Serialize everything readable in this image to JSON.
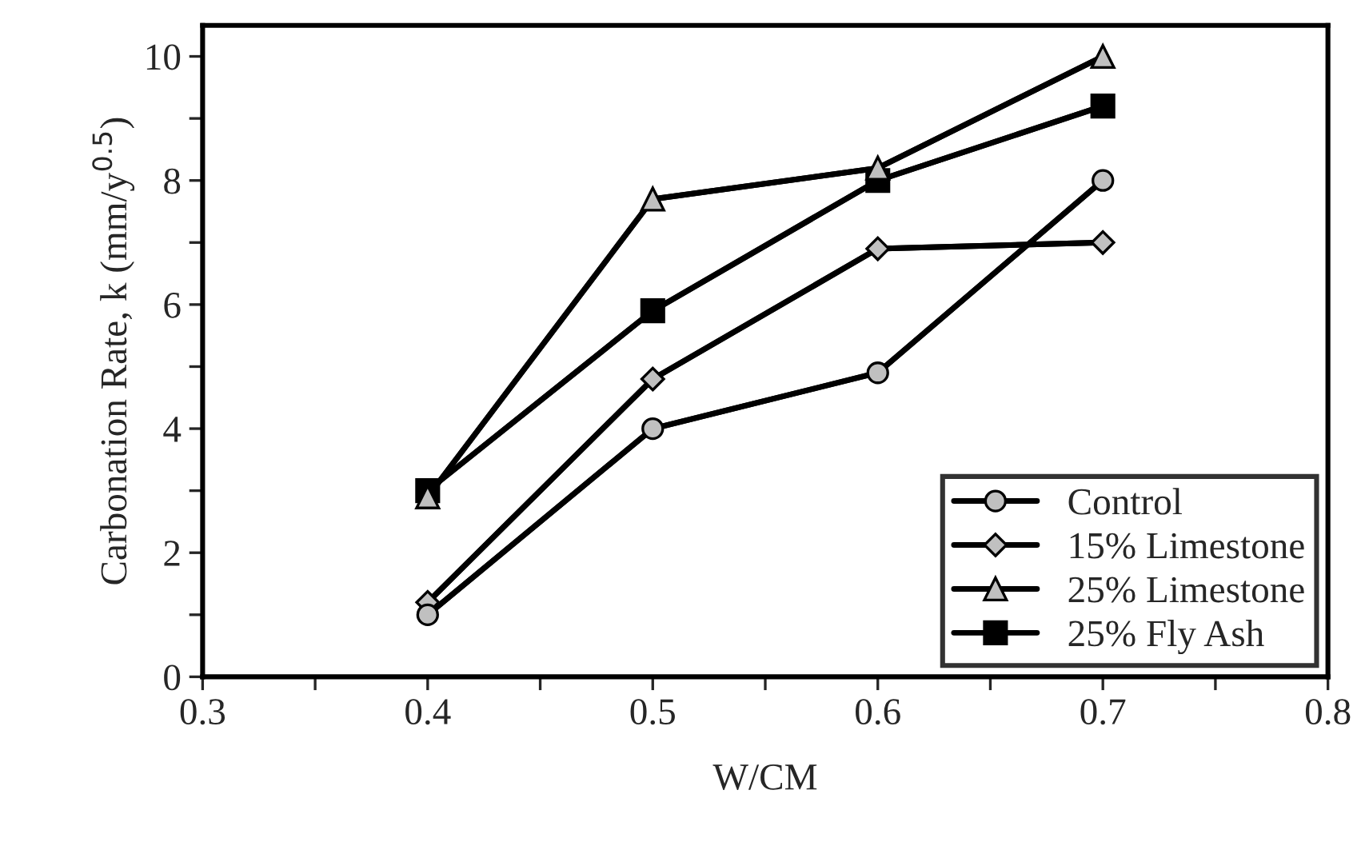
{
  "chart_data": {
    "type": "line",
    "xlabel": "W/CM",
    "ylabel": "Carbonation Rate, k (mm/y$^{0.5}$)",
    "xlim": [
      0.3,
      0.8
    ],
    "xticks": [
      0.3,
      {
        "value": 0.35,
        "label": null
      },
      0.4,
      {
        "value": 0.45,
        "label": null
      },
      0.5,
      {
        "value": 0.55,
        "label": null
      },
      0.6,
      {
        "value": 0.65,
        "label": null
      },
      0.7,
      {
        "value": 0.75,
        "label": null
      },
      0.8
    ],
    "ylim": [
      0,
      10.5
    ],
    "yticks": [
      0,
      {
        "value": 1,
        "label": null
      },
      2,
      {
        "value": 3,
        "label": null
      },
      4,
      {
        "value": 5,
        "label": null
      },
      6,
      {
        "value": 7,
        "label": null
      },
      8,
      {
        "value": 9,
        "label": null
      },
      10
    ],
    "x": [
      0.4,
      0.5,
      0.6,
      0.7
    ],
    "grid": false,
    "legend": "bottom right",
    "line_style": "solid",
    "series": [
      {
        "name": "Control",
        "color": "#c0c0c0",
        "marker": "circle",
        "values": [
          1.0,
          4.0,
          4.9,
          8.0
        ]
      },
      {
        "name": "15% Limestone",
        "color": "#c0c0c0",
        "marker": "diamond",
        "values": [
          1.2,
          4.8,
          6.9,
          7.0
        ]
      },
      {
        "name": "25% Limestone",
        "color": "#c0c0c0",
        "marker": "triangle",
        "values": [
          2.9,
          7.7,
          8.2,
          10.0
        ]
      },
      {
        "name": "25% Fly Ash",
        "color": "#000000",
        "marker": "square",
        "values": [
          3.0,
          5.9,
          8.0,
          9.2
        ]
      }
    ]
  }
}
